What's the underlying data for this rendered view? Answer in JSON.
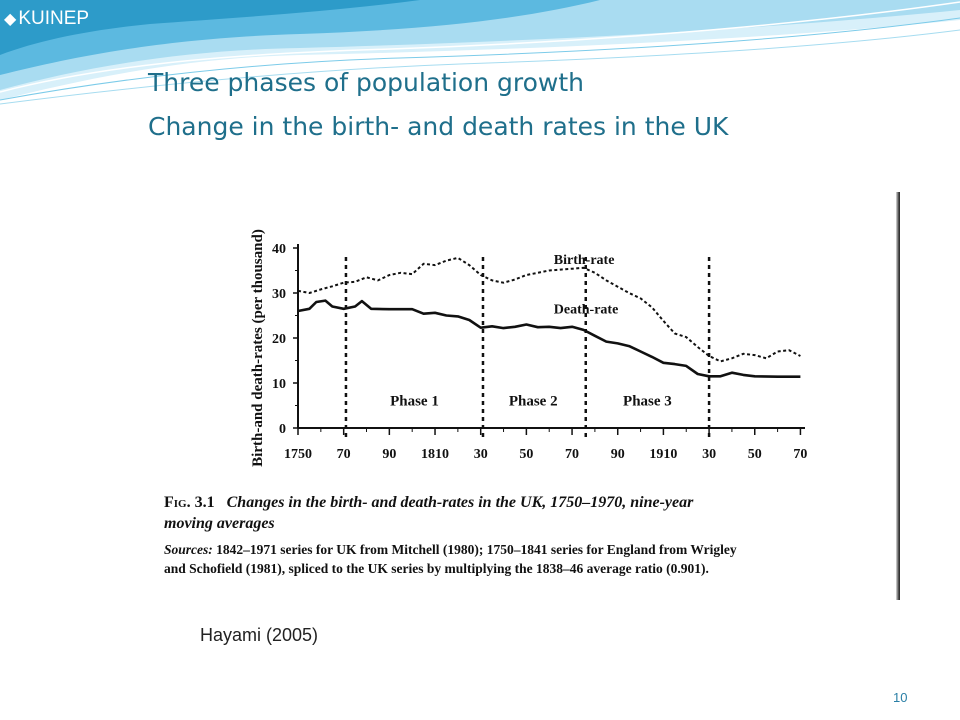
{
  "logo": {
    "text": "KUINEP",
    "icon": "diamond-icon"
  },
  "slide": {
    "title_line1": "Three phases of population growth",
    "title_line2": "Change in the birth- and death rates in the UK",
    "attribution": "Hayami (2005)",
    "page_number": "10"
  },
  "colors": {
    "title": "#1f6f8b",
    "wave_light": "#bfe6f5",
    "wave_mid": "#6cc3e6",
    "wave_dark": "#2d9bc9"
  },
  "figure": {
    "caption_label": "Fig. 3.1",
    "caption_title_1": "Changes in the birth- and death-rates in the UK, 1750–1970, nine-year",
    "caption_title_2": "moving averages",
    "sources_label": "Sources:",
    "sources_text_1": "1842–1971 series for UK from Mitchell (1980); 1750–1841 series for England from Wrigley",
    "sources_text_2": "and Schofield (1981), spliced to the UK series by multiplying the 1838–46 average ratio (0.901)."
  },
  "chart_data": {
    "type": "line",
    "ylabel": "Birth-and death-rates (per thousand)",
    "ylim": [
      0,
      40
    ],
    "yticks": [
      "0",
      "10",
      "20",
      "30",
      "40"
    ],
    "xlim": [
      1750,
      1972
    ],
    "xticks": [
      {
        "value": 1750,
        "label": "1750"
      },
      {
        "value": 1770,
        "label": "70"
      },
      {
        "value": 1790,
        "label": "90"
      },
      {
        "value": 1810,
        "label": "1810"
      },
      {
        "value": 1830,
        "label": "30"
      },
      {
        "value": 1850,
        "label": "50"
      },
      {
        "value": 1870,
        "label": "70"
      },
      {
        "value": 1890,
        "label": "90"
      },
      {
        "value": 1910,
        "label": "1910"
      },
      {
        "value": 1930,
        "label": "30"
      },
      {
        "value": 1950,
        "label": "50"
      },
      {
        "value": 1970,
        "label": "70"
      }
    ],
    "phase_boundaries": [
      1771,
      1831,
      1876,
      1930
    ],
    "phase_labels": [
      {
        "text": "Phase 1",
        "x": 1801,
        "y": 5
      },
      {
        "text": "Phase 2",
        "x": 1853,
        "y": 5
      },
      {
        "text": "Phase 3",
        "x": 1903,
        "y": 5
      }
    ],
    "series": [
      {
        "name": "Birth-rate",
        "style": "dashed",
        "label_at": {
          "x": 1862,
          "y": 36.5
        },
        "points": [
          [
            1750,
            30.5
          ],
          [
            1755,
            30
          ],
          [
            1760,
            30.8
          ],
          [
            1765,
            31.5
          ],
          [
            1770,
            32.3
          ],
          [
            1775,
            32.5
          ],
          [
            1780,
            33.5
          ],
          [
            1785,
            32.8
          ],
          [
            1790,
            34
          ],
          [
            1795,
            34.5
          ],
          [
            1800,
            34.2
          ],
          [
            1805,
            36.5
          ],
          [
            1810,
            36.2
          ],
          [
            1815,
            37.2
          ],
          [
            1820,
            37.8
          ],
          [
            1825,
            36.2
          ],
          [
            1830,
            34
          ],
          [
            1835,
            32.8
          ],
          [
            1840,
            32.3
          ],
          [
            1845,
            33
          ],
          [
            1850,
            34
          ],
          [
            1855,
            34.5
          ],
          [
            1860,
            35
          ],
          [
            1865,
            35.2
          ],
          [
            1870,
            35.4
          ],
          [
            1875,
            35.6
          ],
          [
            1880,
            34.5
          ],
          [
            1885,
            32.8
          ],
          [
            1890,
            31.4
          ],
          [
            1895,
            30
          ],
          [
            1900,
            28.8
          ],
          [
            1905,
            26.8
          ],
          [
            1910,
            23.8
          ],
          [
            1915,
            21
          ],
          [
            1920,
            20.2
          ],
          [
            1925,
            18
          ],
          [
            1930,
            16
          ],
          [
            1935,
            14.8
          ],
          [
            1940,
            15.5
          ],
          [
            1945,
            16.5
          ],
          [
            1950,
            16.2
          ],
          [
            1955,
            15.5
          ],
          [
            1960,
            17
          ],
          [
            1965,
            17.3
          ],
          [
            1970,
            16
          ]
        ]
      },
      {
        "name": "Death-rate",
        "style": "solid",
        "label_at": {
          "x": 1862,
          "y": 25.4
        },
        "points": [
          [
            1750,
            26
          ],
          [
            1755,
            26.5
          ],
          [
            1758,
            28
          ],
          [
            1762,
            28.3
          ],
          [
            1765,
            27
          ],
          [
            1770,
            26.5
          ],
          [
            1775,
            27
          ],
          [
            1778,
            28.2
          ],
          [
            1782,
            26.5
          ],
          [
            1790,
            26.4
          ],
          [
            1800,
            26.4
          ],
          [
            1805,
            25.4
          ],
          [
            1810,
            25.6
          ],
          [
            1815,
            25
          ],
          [
            1820,
            24.8
          ],
          [
            1825,
            24
          ],
          [
            1830,
            22.3
          ],
          [
            1835,
            22.6
          ],
          [
            1840,
            22.2
          ],
          [
            1845,
            22.5
          ],
          [
            1850,
            23
          ],
          [
            1855,
            22.4
          ],
          [
            1860,
            22.5
          ],
          [
            1865,
            22.2
          ],
          [
            1870,
            22.5
          ],
          [
            1875,
            21.8
          ],
          [
            1880,
            20.5
          ],
          [
            1885,
            19.2
          ],
          [
            1890,
            18.8
          ],
          [
            1895,
            18.2
          ],
          [
            1900,
            17
          ],
          [
            1905,
            15.8
          ],
          [
            1910,
            14.5
          ],
          [
            1915,
            14.2
          ],
          [
            1920,
            13.8
          ],
          [
            1925,
            12
          ],
          [
            1930,
            11.5
          ],
          [
            1935,
            11.5
          ],
          [
            1940,
            12.3
          ],
          [
            1945,
            11.8
          ],
          [
            1950,
            11.5
          ],
          [
            1960,
            11.4
          ],
          [
            1970,
            11.4
          ]
        ]
      }
    ]
  }
}
